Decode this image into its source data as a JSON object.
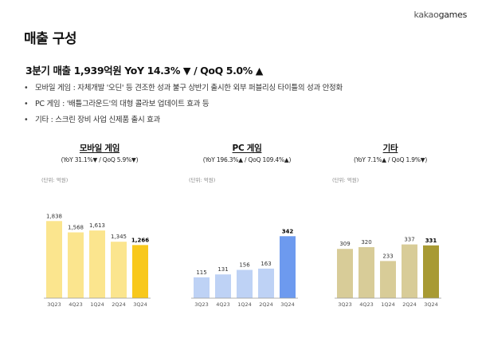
{
  "brand": {
    "logo_k": "kakao",
    "logo_g": "games"
  },
  "page_title": "매출 구성",
  "headline": "3분기 매출 1,939억원 YoY 14.3% ▼ / QoQ 5.0% ▲",
  "bullets": [
    "모바일 게임 : 자체개발 '오딘' 등 견조한 성과 불구 상반기 출시한 외부 퍼블리싱 타이틀의 성과 안정화",
    "PC 게임 : '배틀그라운드'의 대형 콜라보 업데이트 효과 등",
    "기타 : 스크린 장비 사업 신제품 출시 효과"
  ],
  "bullet_mark": "•",
  "chart_data": [
    {
      "type": "bar",
      "title": "모바일 게임",
      "subtitle": "(YoY 31.1%▼ / QoQ 5.9%▼)",
      "unit_label": "(단위: 억원)",
      "categories": [
        "3Q23",
        "4Q23",
        "1Q24",
        "2Q24",
        "3Q24"
      ],
      "values": [
        1838,
        1568,
        1613,
        1345,
        1266
      ],
      "value_labels": [
        "1,838",
        "1,568",
        "1,613",
        "1,345",
        "1,266"
      ],
      "colors": [
        "#FBE58E",
        "#FBE58E",
        "#FBE58E",
        "#FBE58E",
        "#F8C81C"
      ],
      "ylim": [
        0,
        1900
      ]
    },
    {
      "type": "bar",
      "title": "PC 게임",
      "subtitle": "(YoY 196.3%▲ / QoQ 109.4%▲)",
      "unit_label": "(단위: 억원)",
      "categories": [
        "3Q23",
        "4Q23",
        "1Q24",
        "2Q24",
        "3Q24"
      ],
      "values": [
        115,
        131,
        156,
        163,
        342
      ],
      "value_labels": [
        "115",
        "131",
        "156",
        "163",
        "342"
      ],
      "colors": [
        "#BED2F5",
        "#BED2F5",
        "#BED2F5",
        "#BED2F5",
        "#6D9AEF"
      ],
      "ylim": [
        0,
        440
      ]
    },
    {
      "type": "bar",
      "title": "기타",
      "subtitle": "(YoY 7.1%▲ / QoQ 1.9%▼)",
      "unit_label": "(단위: 억원)",
      "categories": [
        "3Q23",
        "4Q23",
        "1Q24",
        "2Q24",
        "3Q24"
      ],
      "values": [
        309,
        320,
        233,
        337,
        331
      ],
      "value_labels": [
        "309",
        "320",
        "233",
        "337",
        "331"
      ],
      "colors": [
        "#D8CC98",
        "#D8CC98",
        "#D8CC98",
        "#D8CC98",
        "#A89A33"
      ],
      "ylim": [
        0,
        500
      ]
    }
  ]
}
